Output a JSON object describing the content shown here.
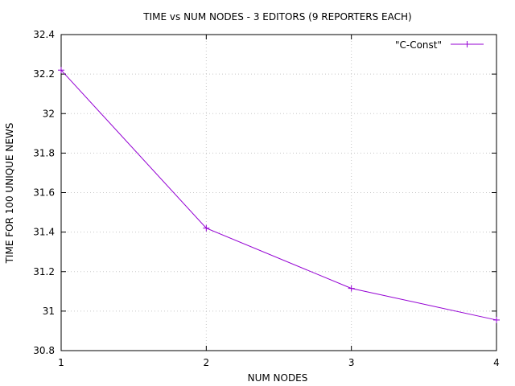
{
  "chart_data": {
    "type": "line",
    "title": "TIME vs NUM NODES - 3 EDITORS (9 REPORTERS EACH)",
    "xlabel": "NUM NODES",
    "ylabel": "TIME FOR 100 UNIQUE NEWS",
    "xlim": [
      1,
      4
    ],
    "ylim": [
      30.8,
      32.4
    ],
    "xticks": [
      "1",
      "2",
      "3",
      "4"
    ],
    "yticks": [
      "30.8",
      "31",
      "31.2",
      "31.4",
      "31.6",
      "31.8",
      "32",
      "32.2",
      "32.4"
    ],
    "grid": true,
    "legend_position": "top-right",
    "series": [
      {
        "name": "\"C-Const\"",
        "color": "#9400d3",
        "x": [
          1,
          2,
          3,
          4
        ],
        "y": [
          32.22,
          31.42,
          31.115,
          30.955
        ]
      }
    ]
  }
}
